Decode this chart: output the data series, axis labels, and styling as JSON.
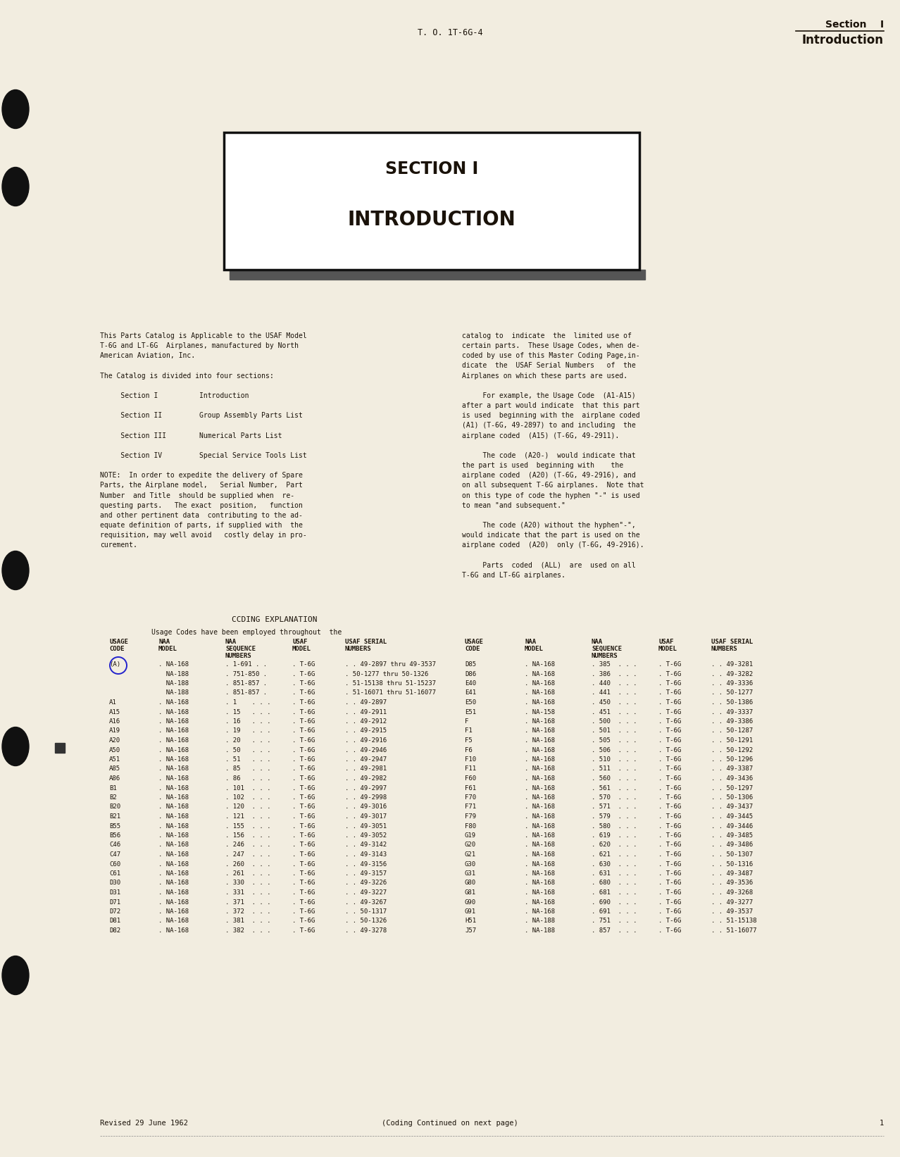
{
  "bg": "#f2ede0",
  "header_to": "T. O. 1T-6G-4",
  "header_section": "Section    I",
  "header_intro": "Introduction",
  "box_title1": "SECTION I",
  "box_title2": "INTRODUCTION",
  "left_col_text": "This Parts Catalog is Applicable to the USAF Model\nT-6G and LT-6G  Airplanes, manufactured by North\nAmerican Aviation, Inc.\n\nThe Catalog is divided into four sections:\n\n     Section I          Introduction\n\n     Section II         Group Assembly Parts List\n\n     Section III        Numerical Parts List\n\n     Section IV         Special Service Tools List\n\nNOTE:  In order to expedite the delivery of Spare\nParts, the Airplane model,   Serial Number,  Part\nNumber  and Title  should be supplied when  re-\nquesting parts.   The exact  position,   function\nand other pertinent data  contributing to the ad-\nequate definition of parts, if supplied with  the\nrequisition, may well avoid   costly delay in pro-\ncurement.",
  "right_col_text": "catalog to  indicate  the  limited use of\ncertain parts.  These Usage Codes, when de-\ncoded by use of this Master Coding Page,in-\ndicate  the  USAF Serial Numbers   of  the\nAirplanes on which these parts are used.\n\n     For example, the Usage Code  (A1-A15)\nafter a part would indicate  that this part\nis used  beginning with the  airplane coded\n(A1) (T-6G, 49-2897) to and including  the\nairplane coded  (A15) (T-6G, 49-2911).\n\n     The code  (A20-)  would indicate that\nthe part is used  beginning with    the\nairplane coded  (A20) (T-6G, 49-2916), and\non all subsequent T-6G airplanes.  Note that\non this type of code the hyphen \"-\" is used\nto mean \"and subsequent.\"\n\n     The code (A20) without the hyphen\"-\",\nwould indicate that the part is used on the\nairplane coded  (A20)  only (T-6G, 49-2916).\n\n     Parts  coded  (ALL)  are  used on all\nT-6G and LT-6G airplanes.",
  "coding_hdr": "CCDING EXPLANATION",
  "coding_sub": "Usage Codes have been employed throughout  the",
  "tbl_left_rows": [
    [
      "(A)",
      ". NA-168",
      ". 1-691 . .",
      ". T-6G",
      ". . 49-2897 thru 49-3537"
    ],
    [
      "",
      "  NA-188",
      ". 751-850 .",
      ". T-6G",
      ". 50-1277 thru 50-1326"
    ],
    [
      "",
      "  NA-188",
      ". 851-857 .",
      ". T-6G",
      ". 51-15138 thru 51-15237"
    ],
    [
      "",
      "  NA-188",
      ". 851-857 .",
      ". T-6G",
      ". 51-16071 thru 51-16077"
    ],
    [
      "A1",
      ". NA-168",
      ". 1    . . .",
      ". T-6G",
      ". . 49-2897"
    ],
    [
      "A15",
      ". NA-168",
      ". 15   . . .",
      ". T-6G",
      ". . 49-2911"
    ],
    [
      "A16",
      ". NA-168",
      ". 16   . . .",
      ". T-6G",
      ". . 49-2912"
    ],
    [
      "A19",
      ". NA-168",
      ". 19   . . .",
      ". T-6G",
      ". . 49-2915"
    ],
    [
      "A20",
      ". NA-168",
      ". 20   . . .",
      ". T-6G",
      ". . 49-2916"
    ],
    [
      "A50",
      ". NA-168",
      ". 50   . . .",
      ". T-6G",
      ". . 49-2946"
    ],
    [
      "A51",
      ". NA-168",
      ". 51   . . .",
      ". T-6G",
      ". . 49-2947"
    ],
    [
      "A85",
      ". NA-168",
      ". 85   . . .",
      ". T-6G",
      ". . 49-2981"
    ],
    [
      "A86",
      ". NA-168",
      ". 86   . . .",
      ". T-6G",
      ". . 49-2982"
    ],
    [
      "B1",
      ". NA-168",
      ". 101  . . .",
      ". T-6G",
      ". . 49-2997"
    ],
    [
      "B2",
      ". NA-168",
      ". 102  . . .",
      ". T-6G",
      ". . 49-2998"
    ],
    [
      "B20",
      ". NA-168",
      ". 120  . . .",
      ". T-6G",
      ". . 49-3016"
    ],
    [
      "B21",
      ". NA-168",
      ". 121  . . .",
      ". T-6G",
      ". . 49-3017"
    ],
    [
      "B55",
      ". NA-168",
      ". 155  . . .",
      ". T-6G",
      ". . 49-3051"
    ],
    [
      "B56",
      ". NA-168",
      ". 156  . . .",
      ". T-6G",
      ". . 49-3052"
    ],
    [
      "C46",
      ". NA-168",
      ". 246  . . .",
      ". T-6G",
      ". . 49-3142"
    ],
    [
      "C47",
      ". NA-168",
      ". 247  . . .",
      ". T-6G",
      ". . 49-3143"
    ],
    [
      "C60",
      ". NA-168",
      ". 260  . . .",
      ". T-6G",
      ". . 49-3156"
    ],
    [
      "C61",
      ". NA-168",
      ". 261  . . .",
      ". T-6G",
      ". . 49-3157"
    ],
    [
      "D30",
      ". NA-168",
      ". 330  . . .",
      ". T-6G",
      ". . 49-3226"
    ],
    [
      "D31",
      ". NA-168",
      ". 331  . . .",
      ". T-6G",
      ". . 49-3227"
    ],
    [
      "D71",
      ". NA-168",
      ". 371  . . .",
      ". T-6G",
      ". . 49-3267"
    ],
    [
      "D72",
      ". NA-168",
      ". 372  . . .",
      ". T-6G",
      ". . 50-1317"
    ],
    [
      "D81",
      ". NA-168",
      ". 381  . . .",
      ". T-6G",
      ". . 50-1326"
    ],
    [
      "D82",
      ". NA-168",
      ". 382  . . .",
      ". T-6G",
      ". . 49-3278"
    ]
  ],
  "tbl_right_rows": [
    [
      "D85",
      ". NA-168",
      ". 385  . . .",
      ". T-6G",
      ". . 49-3281"
    ],
    [
      "D86",
      ". NA-168",
      ". 386  . . .",
      ". T-6G",
      ". . 49-3282"
    ],
    [
      "E40",
      ". NA-168",
      ". 440  . . .",
      ". T-6G",
      ". . 49-3336"
    ],
    [
      "E41",
      ". NA-168",
      ". 441  . . .",
      ". T-6G",
      ". . 50-1277"
    ],
    [
      "E50",
      ". NA-168",
      ". 450  . . .",
      ". T-6G",
      ". . 50-1386"
    ],
    [
      "E51",
      ". NA-158",
      ". 451  . . .",
      ". T-6G",
      ". . 49-3337"
    ],
    [
      "F",
      ". NA-168",
      ". 500  . . .",
      ". T-6G",
      ". . 49-3386"
    ],
    [
      "F1",
      ". NA-168",
      ". 501  . . .",
      ". T-6G",
      ". . 50-1287"
    ],
    [
      "F5",
      ". NA-168",
      ". 505  . . .",
      ". T-6G",
      ". . 50-1291"
    ],
    [
      "F6",
      ". NA-168",
      ". 506  . . .",
      ". T-6G",
      ". . 50-1292"
    ],
    [
      "F10",
      ". NA-168",
      ". 510  . . .",
      ". T-6G",
      ". . 50-1296"
    ],
    [
      "F11",
      ". NA-168",
      ". 511  . . .",
      ". T-6G",
      ". . 49-3387"
    ],
    [
      "F60",
      ". NA-168",
      ". 560  . . .",
      ". T-6G",
      ". . 49-3436"
    ],
    [
      "F61",
      ". NA-168",
      ". 561  . . .",
      ". T-6G",
      ". . 50-1297"
    ],
    [
      "F70",
      ". NA-168",
      ". 570  . . .",
      ". T-6G",
      ". . 50-1306"
    ],
    [
      "F71",
      ". NA-168",
      ". 571  . . .",
      ". T-6G",
      ". . 49-3437"
    ],
    [
      "F79",
      ". NA-168",
      ". 579  . . .",
      ". T-6G",
      ". . 49-3445"
    ],
    [
      "F80",
      ". NA-168",
      ". 580  . . .",
      ". T-6G",
      ". . 49-3446"
    ],
    [
      "G19",
      ". NA-168",
      ". 619  . . .",
      ". T-6G",
      ". . 49-3485"
    ],
    [
      "G20",
      ". NA-168",
      ". 620  . . .",
      ". T-6G",
      ". . 49-3486"
    ],
    [
      "G21",
      ". NA-168",
      ". 621  . . .",
      ". T-6G",
      ". . 50-1307"
    ],
    [
      "G30",
      ". NA-168",
      ". 630  . . .",
      ". T-6G",
      ". . 50-1316"
    ],
    [
      "G31",
      ". NA-168",
      ". 631  . . .",
      ". T-6G",
      ". . 49-3487"
    ],
    [
      "G80",
      ". NA-168",
      ". 680  . . .",
      ". T-6G",
      ". . 49-3536"
    ],
    [
      "G81",
      ". NA-168",
      ". 681  . . .",
      ". T-6G",
      ". . 49-3268"
    ],
    [
      "G90",
      ". NA-168",
      ". 690  . . .",
      ". T-6G",
      ". . 49-3277"
    ],
    [
      "G91",
      ". NA-168",
      ". 691  . . .",
      ". T-6G",
      ". . 49-3537"
    ],
    [
      "H51",
      ". NA-188",
      ". 751  . . .",
      ". T-6G",
      ". . 51-15138"
    ],
    [
      "J57",
      ". NA-188",
      ". 857  . . .",
      ". T-6G",
      ". . 51-16077"
    ]
  ],
  "footer_left": "Revised 29 June 1962",
  "footer_center": "(Coding Continued on next page)",
  "page_num": "1"
}
